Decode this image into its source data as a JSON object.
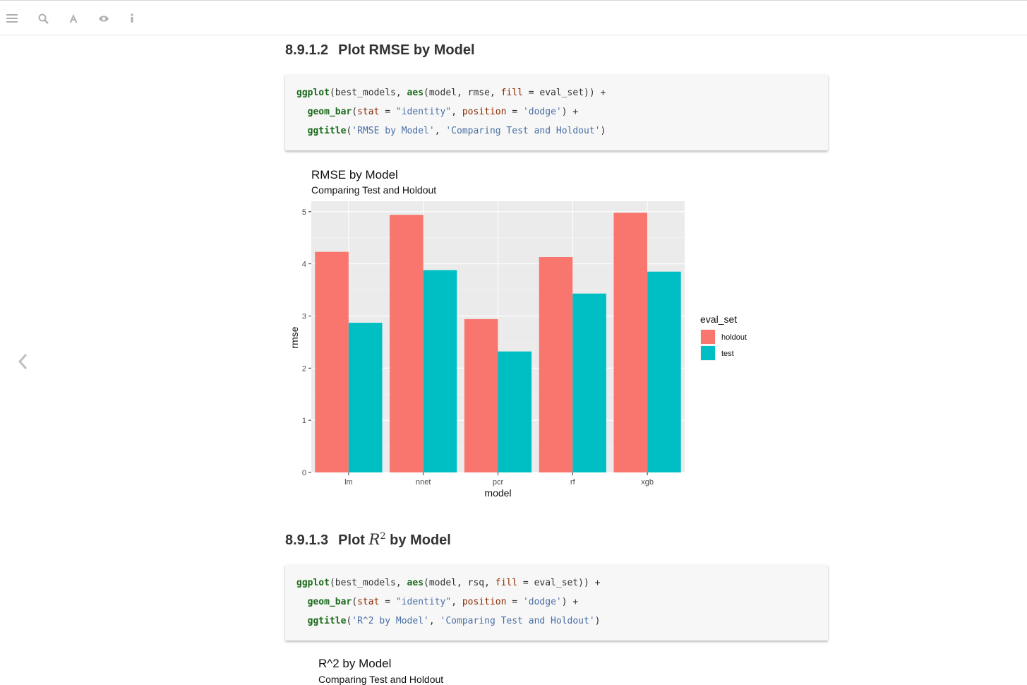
{
  "toolbar": {
    "icons": [
      "menu-icon",
      "search-icon",
      "font-icon",
      "eye-icon",
      "info-icon"
    ]
  },
  "sections": [
    {
      "number": "8.9.1.2",
      "title": "Plot RMSE by Model",
      "code": {
        "line1": {
          "fn1": "ggplot",
          "a": "(best_models, ",
          "fn2": "aes",
          "b": "(model, rmse, ",
          "arg": "fill",
          "c": " = eval_set)) +"
        },
        "line2": {
          "fn": "geom_bar",
          "a": "(",
          "arg1": "stat",
          "b": " = ",
          "str1": "\"identity\"",
          "c": ", ",
          "arg2": "position",
          "d": " = ",
          "str2": "'dodge'",
          "e": ") +"
        },
        "line3": {
          "fn": "ggtitle",
          "a": "(",
          "str1": "'RMSE by Model'",
          "b": ", ",
          "str2": "'Comparing Test and Holdout'",
          "c": ")"
        }
      }
    },
    {
      "number": "8.9.1.3",
      "title_prefix": "Plot ",
      "math_base": "R",
      "math_sup": "2",
      "title_suffix": " by Model",
      "code": {
        "line1": {
          "fn1": "ggplot",
          "a": "(best_models, ",
          "fn2": "aes",
          "b": "(model, rsq, ",
          "arg": "fill",
          "c": " = eval_set)) +"
        },
        "line2": {
          "fn": "geom_bar",
          "a": "(",
          "arg1": "stat",
          "b": " = ",
          "str1": "\"identity\"",
          "c": ", ",
          "arg2": "position",
          "d": " = ",
          "str2": "'dodge'",
          "e": ") +"
        },
        "line3": {
          "fn": "ggtitle",
          "a": "(",
          "str1": "'R^2 by Model'",
          "b": ", ",
          "str2": "'Comparing Test and Holdout'",
          "c": ")"
        }
      }
    }
  ],
  "chart_data": [
    {
      "type": "bar",
      "title": "RMSE by Model",
      "subtitle": "Comparing Test and Holdout",
      "xlabel": "model",
      "ylabel": "rmse",
      "categories": [
        "lm",
        "nnet",
        "pcr",
        "rf",
        "xgb"
      ],
      "series": [
        {
          "name": "holdout",
          "color": "#F8766D",
          "values": [
            4.23,
            4.94,
            2.94,
            4.13,
            4.98
          ]
        },
        {
          "name": "test",
          "color": "#00BFC4",
          "values": [
            2.87,
            3.88,
            2.32,
            3.43,
            3.85
          ]
        }
      ],
      "ylim": [
        0,
        5.2
      ],
      "yticks": [
        0,
        1,
        2,
        3,
        4,
        5
      ],
      "grid": true,
      "legend": {
        "title": "eval_set",
        "position": "right"
      }
    },
    {
      "type": "bar",
      "title": "R^2 by Model",
      "subtitle": "Comparing Test and Holdout"
    }
  ]
}
